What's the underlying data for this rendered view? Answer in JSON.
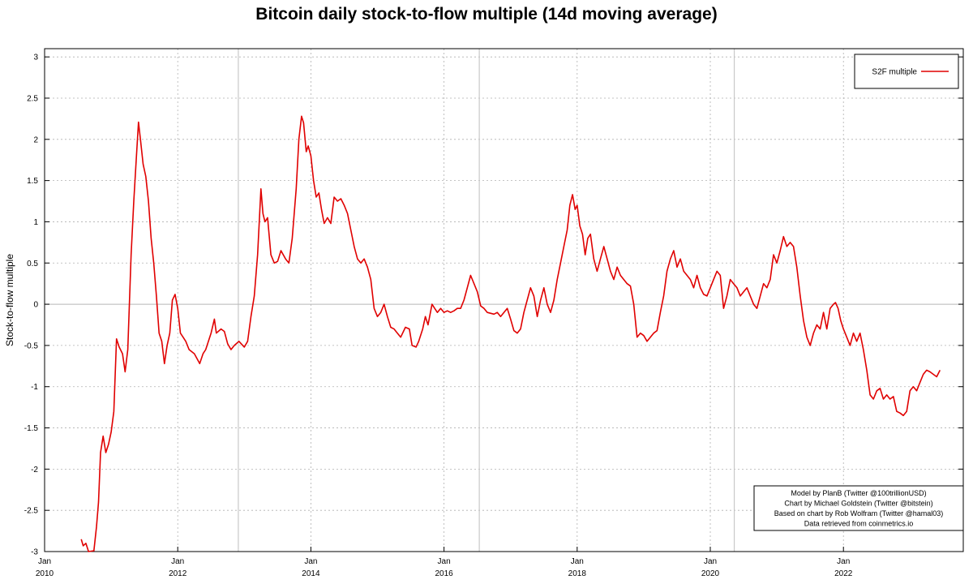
{
  "chart_data": {
    "type": "line",
    "title": "Bitcoin daily stock-to-flow multiple (14d moving average)",
    "xlabel": "",
    "ylabel": "Stock-to-flow multiple",
    "xlim": [
      2010.0,
      2023.8
    ],
    "ylim": [
      -3,
      3.1
    ],
    "x_ticks": [
      {
        "month": "Jan",
        "year": "2010",
        "x": 2010
      },
      {
        "month": "Jan",
        "year": "2012",
        "x": 2012
      },
      {
        "month": "Jan",
        "year": "2014",
        "x": 2014
      },
      {
        "month": "Jan",
        "year": "2016",
        "x": 2016
      },
      {
        "month": "Jan",
        "year": "2018",
        "x": 2018
      },
      {
        "month": "Jan",
        "year": "2020",
        "x": 2020
      },
      {
        "month": "Jan",
        "year": "2022",
        "x": 2022
      }
    ],
    "y_ticks": [
      3,
      2.5,
      2,
      1.5,
      1,
      0.5,
      0,
      -0.5,
      -1,
      -1.5,
      -2,
      -2.5,
      -3
    ],
    "y_tick_labels": [
      "3",
      "2.5",
      "2",
      "1.5",
      "1",
      "0.5",
      "0",
      "-0.5",
      "-1",
      "-1.5",
      "-2",
      "-2.5",
      "-3"
    ],
    "halving_lines": [
      2012.91,
      2016.53,
      2020.36
    ],
    "grid": true,
    "legend": {
      "position": "top-right",
      "entries": [
        "S2F multiple"
      ]
    },
    "series": [
      {
        "name": "S2F multiple",
        "color": "#e00000",
        "points": [
          [
            2010.55,
            -2.85
          ],
          [
            2010.58,
            -2.93
          ],
          [
            2010.62,
            -2.9
          ],
          [
            2010.66,
            -3.0
          ],
          [
            2010.74,
            -2.99
          ],
          [
            2010.78,
            -2.7
          ],
          [
            2010.81,
            -2.4
          ],
          [
            2010.84,
            -1.8
          ],
          [
            2010.88,
            -1.6
          ],
          [
            2010.92,
            -1.8
          ],
          [
            2010.96,
            -1.7
          ],
          [
            2011.0,
            -1.55
          ],
          [
            2011.04,
            -1.3
          ],
          [
            2011.08,
            -0.42
          ],
          [
            2011.12,
            -0.52
          ],
          [
            2011.17,
            -0.6
          ],
          [
            2011.21,
            -0.82
          ],
          [
            2011.25,
            -0.55
          ],
          [
            2011.3,
            0.6
          ],
          [
            2011.34,
            1.25
          ],
          [
            2011.38,
            1.8
          ],
          [
            2011.41,
            2.21
          ],
          [
            2011.44,
            2.0
          ],
          [
            2011.48,
            1.7
          ],
          [
            2011.52,
            1.55
          ],
          [
            2011.56,
            1.25
          ],
          [
            2011.6,
            0.8
          ],
          [
            2011.64,
            0.5
          ],
          [
            2011.68,
            0.1
          ],
          [
            2011.72,
            -0.35
          ],
          [
            2011.76,
            -0.45
          ],
          [
            2011.8,
            -0.72
          ],
          [
            2011.84,
            -0.5
          ],
          [
            2011.88,
            -0.35
          ],
          [
            2011.92,
            0.05
          ],
          [
            2011.96,
            0.12
          ],
          [
            2012.0,
            -0.05
          ],
          [
            2012.04,
            -0.35
          ],
          [
            2012.08,
            -0.4
          ],
          [
            2012.12,
            -0.45
          ],
          [
            2012.17,
            -0.55
          ],
          [
            2012.25,
            -0.6
          ],
          [
            2012.33,
            -0.72
          ],
          [
            2012.38,
            -0.6
          ],
          [
            2012.42,
            -0.55
          ],
          [
            2012.5,
            -0.35
          ],
          [
            2012.55,
            -0.18
          ],
          [
            2012.58,
            -0.35
          ],
          [
            2012.65,
            -0.3
          ],
          [
            2012.7,
            -0.33
          ],
          [
            2012.75,
            -0.48
          ],
          [
            2012.8,
            -0.55
          ],
          [
            2012.85,
            -0.5
          ],
          [
            2012.92,
            -0.45
          ],
          [
            2013.0,
            -0.52
          ],
          [
            2013.05,
            -0.45
          ],
          [
            2013.1,
            -0.15
          ],
          [
            2013.15,
            0.1
          ],
          [
            2013.2,
            0.6
          ],
          [
            2013.25,
            1.4
          ],
          [
            2013.28,
            1.1
          ],
          [
            2013.31,
            1.0
          ],
          [
            2013.35,
            1.05
          ],
          [
            2013.4,
            0.6
          ],
          [
            2013.45,
            0.5
          ],
          [
            2013.5,
            0.52
          ],
          [
            2013.55,
            0.65
          ],
          [
            2013.62,
            0.55
          ],
          [
            2013.67,
            0.5
          ],
          [
            2013.72,
            0.8
          ],
          [
            2013.78,
            1.4
          ],
          [
            2013.82,
            2.0
          ],
          [
            2013.86,
            2.28
          ],
          [
            2013.89,
            2.2
          ],
          [
            2013.93,
            1.85
          ],
          [
            2013.96,
            1.92
          ],
          [
            2014.0,
            1.8
          ],
          [
            2014.04,
            1.5
          ],
          [
            2014.08,
            1.3
          ],
          [
            2014.12,
            1.35
          ],
          [
            2014.16,
            1.15
          ],
          [
            2014.2,
            0.98
          ],
          [
            2014.25,
            1.05
          ],
          [
            2014.3,
            0.98
          ],
          [
            2014.35,
            1.3
          ],
          [
            2014.4,
            1.25
          ],
          [
            2014.45,
            1.28
          ],
          [
            2014.5,
            1.2
          ],
          [
            2014.55,
            1.1
          ],
          [
            2014.6,
            0.9
          ],
          [
            2014.65,
            0.7
          ],
          [
            2014.7,
            0.55
          ],
          [
            2014.75,
            0.5
          ],
          [
            2014.8,
            0.55
          ],
          [
            2014.85,
            0.45
          ],
          [
            2014.9,
            0.3
          ],
          [
            2014.95,
            -0.05
          ],
          [
            2015.0,
            -0.15
          ],
          [
            2015.05,
            -0.1
          ],
          [
            2015.1,
            0.0
          ],
          [
            2015.15,
            -0.15
          ],
          [
            2015.2,
            -0.28
          ],
          [
            2015.25,
            -0.3
          ],
          [
            2015.3,
            -0.35
          ],
          [
            2015.35,
            -0.4
          ],
          [
            2015.42,
            -0.28
          ],
          [
            2015.48,
            -0.3
          ],
          [
            2015.52,
            -0.5
          ],
          [
            2015.58,
            -0.52
          ],
          [
            2015.62,
            -0.45
          ],
          [
            2015.68,
            -0.3
          ],
          [
            2015.72,
            -0.15
          ],
          [
            2015.76,
            -0.25
          ],
          [
            2015.82,
            0.0
          ],
          [
            2015.86,
            -0.05
          ],
          [
            2015.9,
            -0.1
          ],
          [
            2015.95,
            -0.05
          ],
          [
            2016.0,
            -0.1
          ],
          [
            2016.05,
            -0.08
          ],
          [
            2016.1,
            -0.1
          ],
          [
            2016.15,
            -0.08
          ],
          [
            2016.2,
            -0.05
          ],
          [
            2016.25,
            -0.05
          ],
          [
            2016.3,
            0.05
          ],
          [
            2016.35,
            0.2
          ],
          [
            2016.4,
            0.35
          ],
          [
            2016.45,
            0.25
          ],
          [
            2016.5,
            0.15
          ],
          [
            2016.55,
            -0.02
          ],
          [
            2016.6,
            -0.05
          ],
          [
            2016.65,
            -0.1
          ],
          [
            2016.75,
            -0.12
          ],
          [
            2016.8,
            -0.1
          ],
          [
            2016.85,
            -0.15
          ],
          [
            2016.9,
            -0.1
          ],
          [
            2016.95,
            -0.05
          ],
          [
            2017.0,
            -0.18
          ],
          [
            2017.05,
            -0.32
          ],
          [
            2017.1,
            -0.35
          ],
          [
            2017.15,
            -0.3
          ],
          [
            2017.2,
            -0.1
          ],
          [
            2017.25,
            0.05
          ],
          [
            2017.3,
            0.2
          ],
          [
            2017.35,
            0.1
          ],
          [
            2017.4,
            -0.15
          ],
          [
            2017.45,
            0.05
          ],
          [
            2017.5,
            0.2
          ],
          [
            2017.55,
            0.0
          ],
          [
            2017.6,
            -0.1
          ],
          [
            2017.65,
            0.05
          ],
          [
            2017.7,
            0.3
          ],
          [
            2017.75,
            0.5
          ],
          [
            2017.8,
            0.7
          ],
          [
            2017.85,
            0.9
          ],
          [
            2017.89,
            1.2
          ],
          [
            2017.93,
            1.33
          ],
          [
            2017.97,
            1.15
          ],
          [
            2018.0,
            1.2
          ],
          [
            2018.04,
            0.95
          ],
          [
            2018.08,
            0.85
          ],
          [
            2018.12,
            0.6
          ],
          [
            2018.16,
            0.8
          ],
          [
            2018.2,
            0.85
          ],
          [
            2018.25,
            0.55
          ],
          [
            2018.3,
            0.4
          ],
          [
            2018.35,
            0.55
          ],
          [
            2018.4,
            0.7
          ],
          [
            2018.45,
            0.55
          ],
          [
            2018.5,
            0.4
          ],
          [
            2018.55,
            0.3
          ],
          [
            2018.6,
            0.45
          ],
          [
            2018.65,
            0.35
          ],
          [
            2018.7,
            0.3
          ],
          [
            2018.75,
            0.25
          ],
          [
            2018.8,
            0.22
          ],
          [
            2018.85,
            0.0
          ],
          [
            2018.9,
            -0.4
          ],
          [
            2018.95,
            -0.35
          ],
          [
            2019.0,
            -0.38
          ],
          [
            2019.05,
            -0.45
          ],
          [
            2019.1,
            -0.4
          ],
          [
            2019.15,
            -0.35
          ],
          [
            2019.2,
            -0.32
          ],
          [
            2019.25,
            -0.1
          ],
          [
            2019.3,
            0.1
          ],
          [
            2019.35,
            0.4
          ],
          [
            2019.4,
            0.55
          ],
          [
            2019.45,
            0.65
          ],
          [
            2019.5,
            0.45
          ],
          [
            2019.55,
            0.55
          ],
          [
            2019.6,
            0.4
          ],
          [
            2019.65,
            0.35
          ],
          [
            2019.7,
            0.3
          ],
          [
            2019.75,
            0.2
          ],
          [
            2019.8,
            0.35
          ],
          [
            2019.85,
            0.2
          ],
          [
            2019.9,
            0.12
          ],
          [
            2019.95,
            0.1
          ],
          [
            2020.0,
            0.2
          ],
          [
            2020.05,
            0.3
          ],
          [
            2020.1,
            0.4
          ],
          [
            2020.15,
            0.35
          ],
          [
            2020.2,
            -0.05
          ],
          [
            2020.25,
            0.1
          ],
          [
            2020.3,
            0.3
          ],
          [
            2020.35,
            0.25
          ],
          [
            2020.4,
            0.2
          ],
          [
            2020.45,
            0.1
          ],
          [
            2020.5,
            0.15
          ],
          [
            2020.55,
            0.2
          ],
          [
            2020.6,
            0.1
          ],
          [
            2020.65,
            0.0
          ],
          [
            2020.7,
            -0.05
          ],
          [
            2020.75,
            0.1
          ],
          [
            2020.8,
            0.25
          ],
          [
            2020.85,
            0.2
          ],
          [
            2020.9,
            0.3
          ],
          [
            2020.95,
            0.6
          ],
          [
            2021.0,
            0.5
          ],
          [
            2021.05,
            0.65
          ],
          [
            2021.1,
            0.82
          ],
          [
            2021.15,
            0.7
          ],
          [
            2021.2,
            0.75
          ],
          [
            2021.25,
            0.7
          ],
          [
            2021.3,
            0.45
          ],
          [
            2021.35,
            0.1
          ],
          [
            2021.4,
            -0.2
          ],
          [
            2021.45,
            -0.4
          ],
          [
            2021.5,
            -0.5
          ],
          [
            2021.55,
            -0.35
          ],
          [
            2021.6,
            -0.25
          ],
          [
            2021.65,
            -0.3
          ],
          [
            2021.7,
            -0.1
          ],
          [
            2021.75,
            -0.3
          ],
          [
            2021.8,
            -0.05
          ],
          [
            2021.85,
            0.0
          ],
          [
            2021.88,
            0.02
          ],
          [
            2021.92,
            -0.05
          ],
          [
            2021.96,
            -0.2
          ],
          [
            2022.0,
            -0.3
          ],
          [
            2022.05,
            -0.4
          ],
          [
            2022.1,
            -0.5
          ],
          [
            2022.15,
            -0.35
          ],
          [
            2022.2,
            -0.45
          ],
          [
            2022.25,
            -0.35
          ],
          [
            2022.3,
            -0.55
          ],
          [
            2022.35,
            -0.8
          ],
          [
            2022.4,
            -1.1
          ],
          [
            2022.45,
            -1.15
          ],
          [
            2022.5,
            -1.05
          ],
          [
            2022.55,
            -1.02
          ],
          [
            2022.6,
            -1.15
          ],
          [
            2022.65,
            -1.1
          ],
          [
            2022.7,
            -1.15
          ],
          [
            2022.75,
            -1.12
          ],
          [
            2022.8,
            -1.3
          ],
          [
            2022.85,
            -1.32
          ],
          [
            2022.9,
            -1.35
          ],
          [
            2022.95,
            -1.3
          ],
          [
            2023.0,
            -1.05
          ],
          [
            2023.05,
            -1.0
          ],
          [
            2023.1,
            -1.05
          ],
          [
            2023.15,
            -0.95
          ],
          [
            2023.2,
            -0.85
          ],
          [
            2023.25,
            -0.8
          ],
          [
            2023.3,
            -0.82
          ],
          [
            2023.35,
            -0.85
          ],
          [
            2023.4,
            -0.88
          ],
          [
            2023.45,
            -0.8
          ]
        ]
      }
    ]
  },
  "credits": [
    "Model by PlanB (Twitter @100trillionUSD)",
    "Chart by Michael Goldstein (Twitter @bitstein)",
    "Based on chart by Rob Wolfram (Twitter @hamal03)",
    "Data retrieved from coinmetrics.io"
  ],
  "colors": {
    "series": "#e00000",
    "grid": "#b0b0b0",
    "halving": "#c8c8c8",
    "zero": "#b8b8b8"
  }
}
